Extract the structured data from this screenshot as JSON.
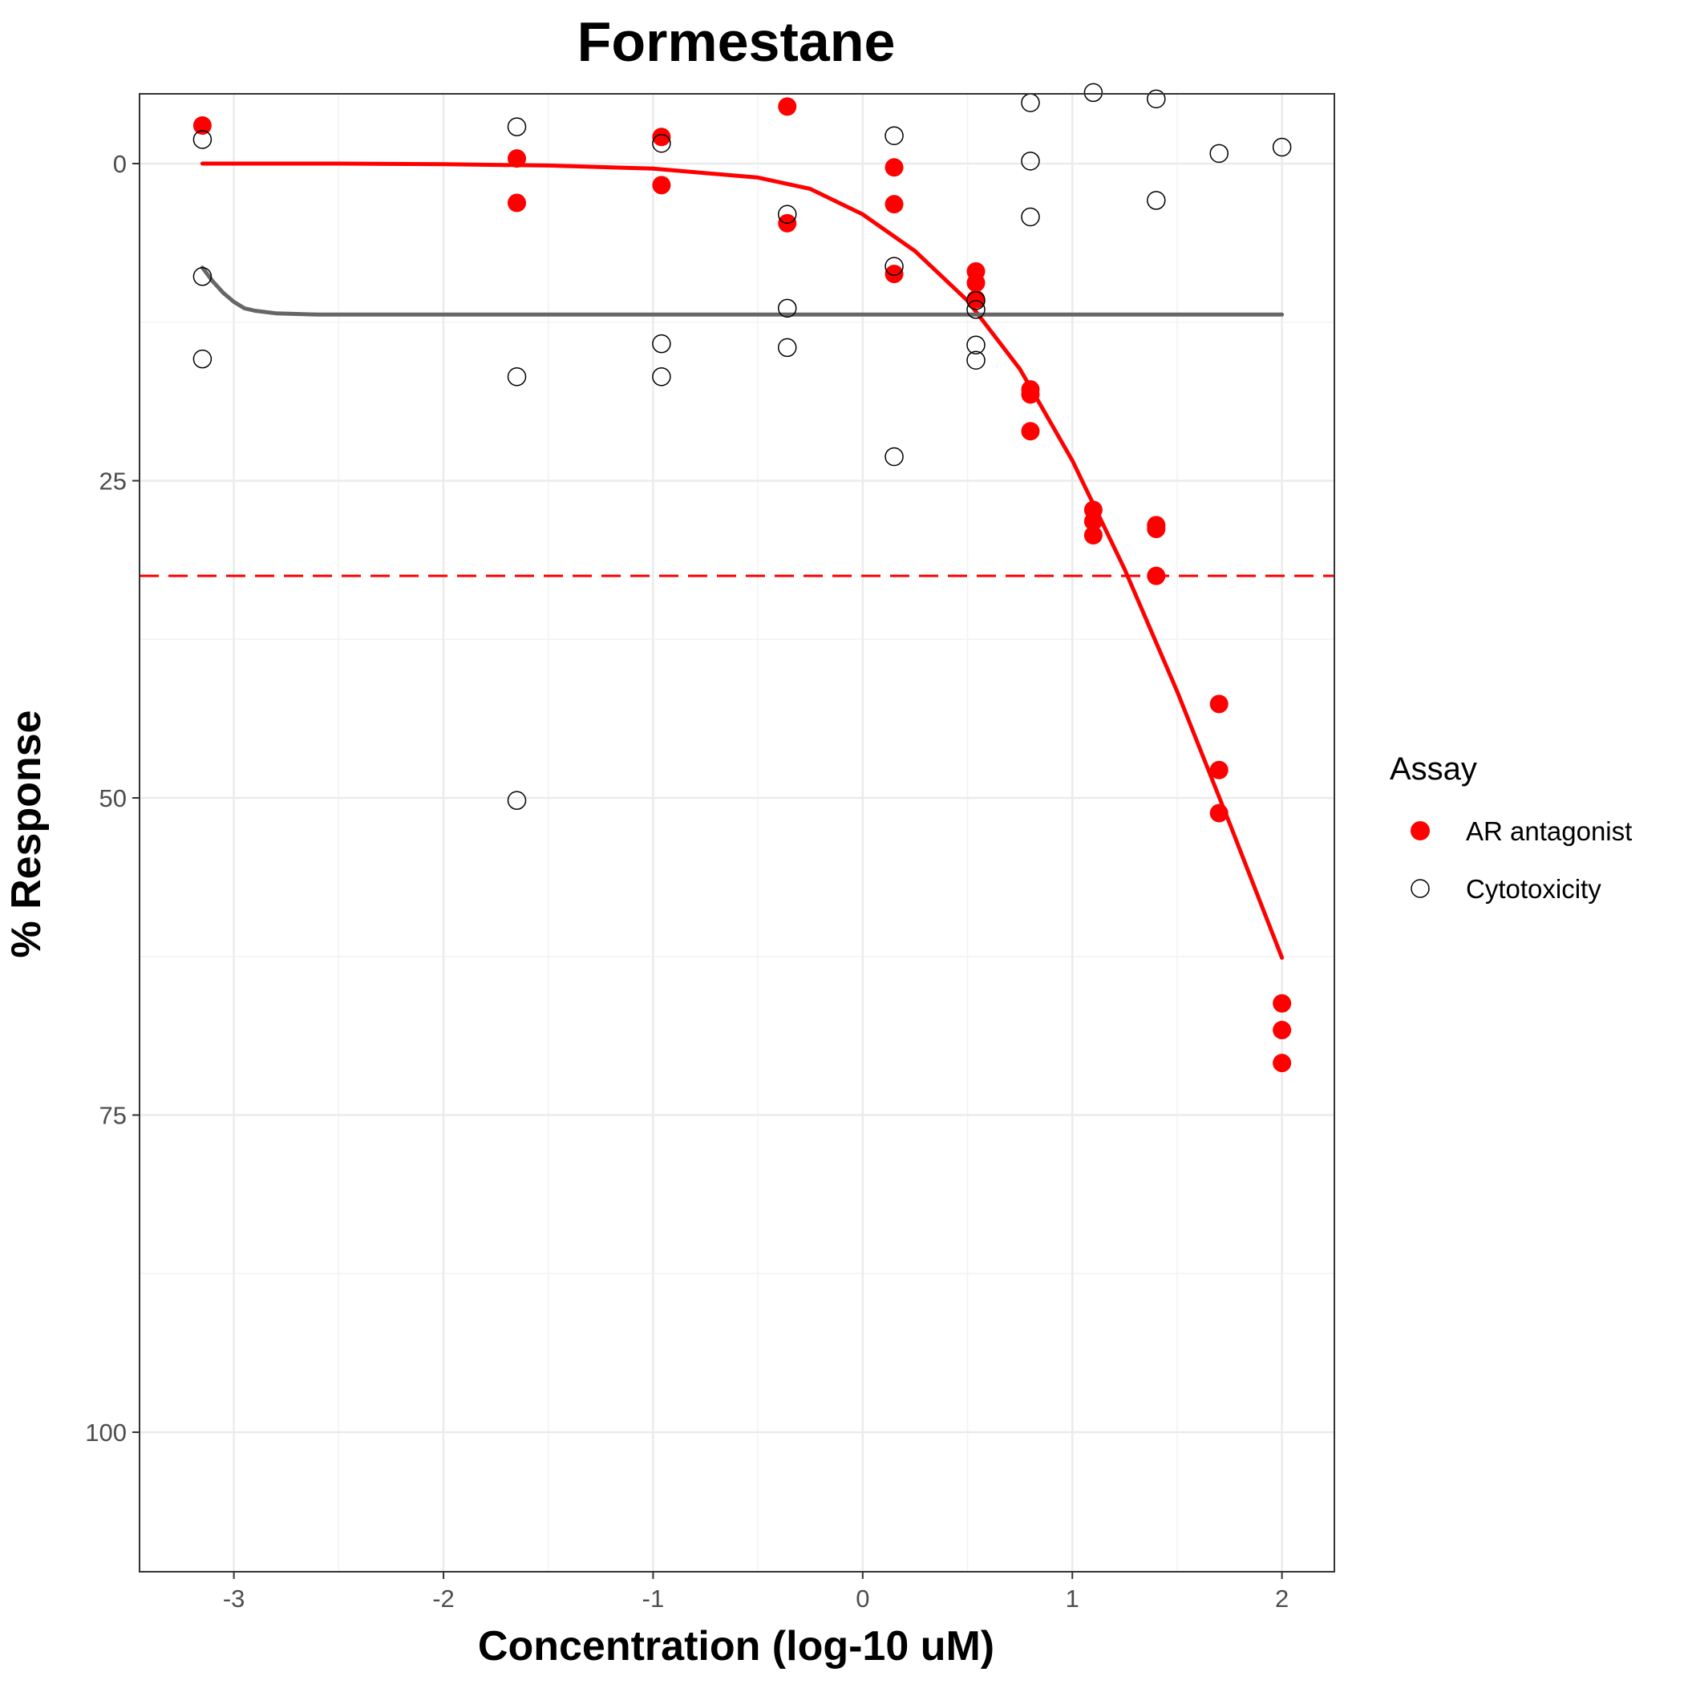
{
  "chart_data": {
    "type": "scatter",
    "title": "Formestane",
    "xlabel": "Concentration (log-10 uM)",
    "ylabel": "% Response",
    "xlim": [
      -3.45,
      2.25
    ],
    "ylim": [
      111,
      -5.5
    ],
    "y_reversed": true,
    "grid": true,
    "x_ticks": [
      -3,
      -2,
      -1,
      0,
      1,
      2
    ],
    "x_tick_labels": [
      "-3",
      "-2",
      "-1",
      "0",
      "1",
      "2"
    ],
    "y_ticks": [
      0,
      25,
      50,
      75,
      100
    ],
    "y_tick_labels": [
      "0",
      "25",
      "50",
      "75",
      "100"
    ],
    "legend": {
      "title": "Assay",
      "position": "right",
      "entries": [
        {
          "label": "AR antagonist",
          "color": "#ff0000",
          "marker": "filled-circle"
        },
        {
          "label": "Cytotoxicity",
          "color": "#000000",
          "marker": "open-circle"
        }
      ]
    },
    "series": [
      {
        "name": "AR antagonist",
        "color": "#ff0000",
        "marker": "filled",
        "points": [
          {
            "x": -3.15,
            "y": -3.0
          },
          {
            "x": -1.65,
            "y": -0.4
          },
          {
            "x": -1.65,
            "y": 3.1
          },
          {
            "x": -0.96,
            "y": -2.1
          },
          {
            "x": -0.96,
            "y": 1.7
          },
          {
            "x": -0.36,
            "y": -4.5
          },
          {
            "x": -0.36,
            "y": 4.7
          },
          {
            "x": 0.15,
            "y": 0.3
          },
          {
            "x": 0.15,
            "y": 3.2
          },
          {
            "x": 0.15,
            "y": 8.7
          },
          {
            "x": 0.54,
            "y": 8.5
          },
          {
            "x": 0.54,
            "y": 9.4
          },
          {
            "x": 0.54,
            "y": 10.7
          },
          {
            "x": 0.8,
            "y": 17.8
          },
          {
            "x": 0.8,
            "y": 18.2
          },
          {
            "x": 0.8,
            "y": 21.1
          },
          {
            "x": 1.1,
            "y": 27.3
          },
          {
            "x": 1.1,
            "y": 28.2
          },
          {
            "x": 1.1,
            "y": 29.3
          },
          {
            "x": 1.4,
            "y": 28.5
          },
          {
            "x": 1.4,
            "y": 28.8
          },
          {
            "x": 1.4,
            "y": 32.5
          },
          {
            "x": 1.7,
            "y": 42.6
          },
          {
            "x": 1.7,
            "y": 47.8
          },
          {
            "x": 1.7,
            "y": 51.2
          },
          {
            "x": 2.0,
            "y": 66.2
          },
          {
            "x": 2.0,
            "y": 68.3
          },
          {
            "x": 2.0,
            "y": 70.9
          }
        ]
      },
      {
        "name": "Cytotoxicity",
        "color": "#000000",
        "marker": "open",
        "points": [
          {
            "x": -3.15,
            "y": -1.9
          },
          {
            "x": -3.15,
            "y": 8.9
          },
          {
            "x": -3.15,
            "y": 15.4
          },
          {
            "x": -1.65,
            "y": -2.9
          },
          {
            "x": -1.65,
            "y": 16.8
          },
          {
            "x": -1.65,
            "y": 50.2
          },
          {
            "x": -0.96,
            "y": -1.6
          },
          {
            "x": -0.96,
            "y": 14.2
          },
          {
            "x": -0.96,
            "y": 16.8
          },
          {
            "x": -0.36,
            "y": 4.0
          },
          {
            "x": -0.36,
            "y": 11.4
          },
          {
            "x": -0.36,
            "y": 14.5
          },
          {
            "x": 0.15,
            "y": -2.2
          },
          {
            "x": 0.15,
            "y": 8.1
          },
          {
            "x": 0.15,
            "y": 23.1
          },
          {
            "x": 0.54,
            "y": 10.8
          },
          {
            "x": 0.54,
            "y": 11.5
          },
          {
            "x": 0.54,
            "y": 14.3
          },
          {
            "x": 0.54,
            "y": 15.5
          },
          {
            "x": 0.8,
            "y": -4.8
          },
          {
            "x": 0.8,
            "y": -0.2
          },
          {
            "x": 0.8,
            "y": 4.2
          },
          {
            "x": 1.1,
            "y": -5.6
          },
          {
            "x": 1.4,
            "y": -5.1
          },
          {
            "x": 1.4,
            "y": 2.9
          },
          {
            "x": 1.7,
            "y": -0.8
          },
          {
            "x": 2.0,
            "y": -1.3
          }
        ]
      }
    ],
    "fit_curves": [
      {
        "name": "AR antagonist",
        "color": "#ff0000",
        "x": [
          -3.15,
          -2.5,
          -2.0,
          -1.5,
          -1.0,
          -0.5,
          -0.25,
          0.0,
          0.25,
          0.5,
          0.75,
          1.0,
          1.25,
          1.5,
          1.75,
          2.0
        ],
        "y": [
          0.0,
          0.0,
          0.05,
          0.15,
          0.4,
          1.1,
          2.0,
          4.0,
          6.9,
          10.8,
          16.2,
          23.4,
          32.0,
          41.6,
          52.0,
          62.6
        ]
      },
      {
        "name": "Cytotoxicity",
        "color": "#666666",
        "x": [
          -3.15,
          -3.1,
          -3.05,
          -3.0,
          -2.95,
          -2.9,
          -2.8,
          -2.6,
          -2.0,
          -1.0,
          0.0,
          1.0,
          2.0
        ],
        "y": [
          8.2,
          9.3,
          10.2,
          10.9,
          11.4,
          11.6,
          11.8,
          11.9,
          11.9,
          11.9,
          11.9,
          11.9,
          11.9
        ]
      }
    ],
    "reference_lines": [
      {
        "orientation": "horizontal",
        "y": 32.5,
        "color": "#ff0000",
        "style": "dashed"
      }
    ]
  }
}
